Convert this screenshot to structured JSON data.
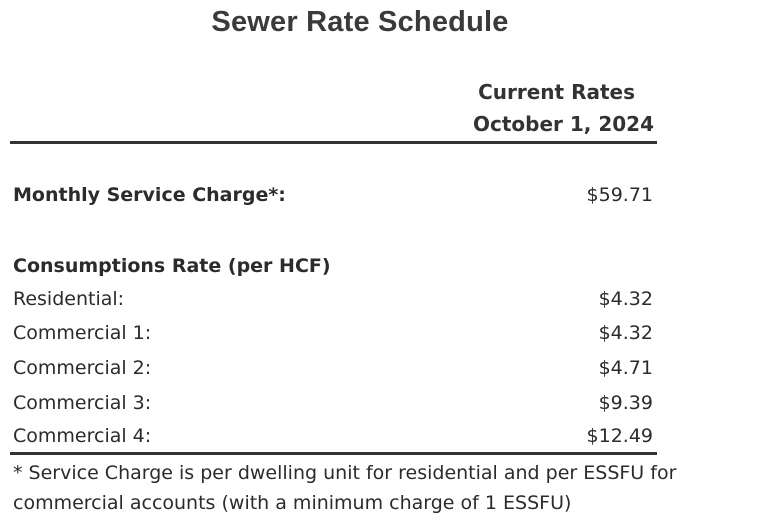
{
  "title": "Sewer Rate Schedule",
  "column_header": {
    "line1": "Current Rates",
    "line2": "October 1, 2024"
  },
  "monthly_service": {
    "label": "Monthly Service Charge*:",
    "value": "$59.71"
  },
  "consumption": {
    "heading": "Consumptions Rate (per HCF)",
    "rows": [
      {
        "label": "Residential:",
        "value": "$4.32"
      },
      {
        "label": "Commercial 1:",
        "value": "$4.32"
      },
      {
        "label": "Commercial 2:",
        "value": "$4.71"
      },
      {
        "label": "Commercial 3:",
        "value": "$9.39"
      },
      {
        "label": "Commercial 4:",
        "value": "$12.49"
      }
    ]
  },
  "footnote": "* Service Charge is per dwelling unit for residential and per ESSFU for commercial accounts (with a minimum charge of 1 ESSFU)"
}
